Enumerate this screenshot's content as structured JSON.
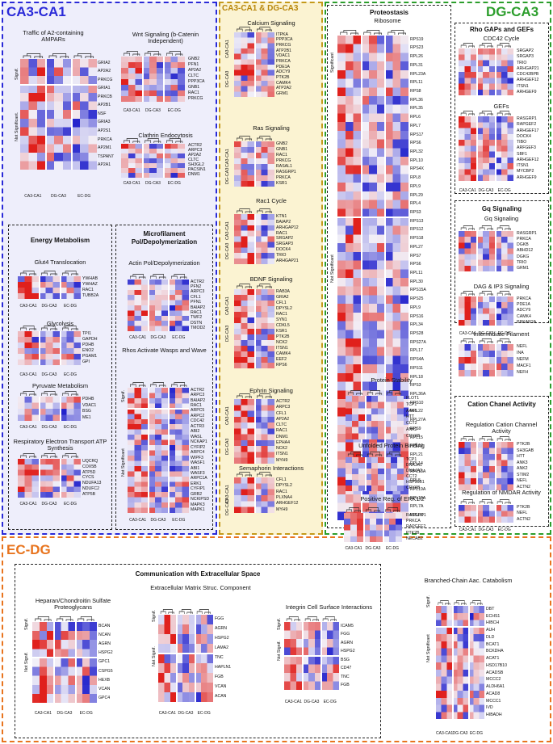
{
  "regions": {
    "ca3_ca1": "CA3-CA1",
    "ca3_ca1_dg_ca3": "CA3-CA1 & DG-CA3",
    "dg_ca3": "DG-CA3",
    "ec_dg": "EC-DG"
  },
  "colors": {
    "blue": "#2a2ad8",
    "yellow": "#b8860b",
    "green": "#2c9e2c",
    "orange": "#e8741e",
    "low": "#2222cc",
    "mid": "#f2f0f8",
    "high": "#e0201c"
  },
  "labels": {
    "signif": "Signif.",
    "not_signif": "Not Significant",
    "not_signif_dot": "Not Significant.",
    "not_signif_short": "Not Signif.",
    "significant": "Significant"
  },
  "boxes": {
    "energy": "Energy Metabolism",
    "microfilament": "Microfilament Pol/Depolymerization",
    "proteostasis": "Proteostasis",
    "rho": "Rho GAPs and GEFs",
    "gq": "Gq Signaling",
    "cation": "Cation Chanel Activity",
    "ecm": "Communication with Extracellular Space"
  },
  "modules": {
    "ampar": {
      "title": "Traffic of A2-containing AMPARs",
      "columns": [
        "CA3-CA1",
        "DG-CA3",
        "EC-DG"
      ],
      "genes_sig": [
        "GRIA2",
        "AP2A2",
        "PRKCG"
      ],
      "genes_ns": [
        "GRIA1",
        "PRKCB",
        "AP2B1",
        "NSF",
        "GRIA3",
        "AP2S1",
        "PRKCA",
        "AP2M1",
        "TSPAN7",
        "AP2A1"
      ]
    },
    "wnt": {
      "title": "Wnt Signaling (b-Catenin Independent)",
      "columns": [
        "CA3-CA1",
        "DG-CA3",
        "EC-DG"
      ],
      "genes": [
        "GNB2",
        "PFN1",
        "AP2A2",
        "CLTC",
        "PPP3CA",
        "GNB1",
        "RAC1",
        "PRKCG"
      ]
    },
    "clathrin": {
      "title": "Clathrin Endocytosis",
      "columns": [
        "CA3-CA1",
        "DG-CA3",
        "EC-DG"
      ],
      "genes": [
        "ACTR2",
        "ARPC3",
        "AP2A2",
        "CLTC",
        "SH3GL2",
        "PACSIN1",
        "DNM1"
      ]
    },
    "glut4": {
      "title": "Glut4 Translocation",
      "columns": [
        "CA3-CA1",
        "DG-CA3",
        "EC-DG"
      ],
      "genes": [
        "YWHAB",
        "YWHAZ",
        "RAC1",
        "TUBB2A"
      ]
    },
    "glycolysis": {
      "title": "Glycolysis",
      "columns": [
        "CA3-CA1",
        "DG-CA3",
        "EC-DG"
      ],
      "genes": [
        "TPI1",
        "GAPDH",
        "PDHB",
        "ENO2",
        "PGAM1",
        "GPI"
      ]
    },
    "pyruvate": {
      "title": "Pyruvate Metabolism",
      "columns": [
        "CA3-CA1",
        "DG-CA3",
        "EC-DG"
      ],
      "genes": [
        "PDHB",
        "VDAC1",
        "BSG",
        "ME1"
      ]
    },
    "resp": {
      "title": "Respiratory Electron Transport ATP Synthesis",
      "columns": [
        "CA3-CA1",
        "DG-CA3",
        "EC-DG"
      ],
      "genes": [
        "UQCRQ",
        "COX5B",
        "ATP5D",
        "CYCS",
        "NDUFA13",
        "NDUFC2",
        "ATP5B"
      ]
    },
    "actin": {
      "title": "Actin Pol/Depolymerization",
      "columns": [
        "CA3-CA1",
        "DG-CA3",
        "EC-DG"
      ],
      "genes": [
        "ACTR2",
        "PFN2",
        "ARPC3",
        "CFL1",
        "PFN1",
        "BAIAP2",
        "RAC1",
        "TWF2",
        "DSTN",
        "TMOD2"
      ]
    },
    "rhos": {
      "title": "Rhos Activate Wasps and Wave",
      "columns": [
        "CA3-CA1",
        "DG-CA3",
        "EC-DG"
      ],
      "genes_sig": [
        "ACTR2",
        "ARPC3",
        "BAIAP2",
        "RAC1"
      ],
      "genes_ns": [
        "ARPC5",
        "ARPC2",
        "CDC42",
        "ACTR3",
        "ABI2",
        "WASL",
        "NCKAP1",
        "CYFIP2",
        "ARPC4",
        "WIPF3",
        "WASF1",
        "ABI1",
        "WASF3",
        "ARPC1A",
        "ERK1",
        "CYFIP1",
        "GRB2",
        "NCKIPSD",
        "MAPK3",
        "MAPK1"
      ]
    },
    "calcium": {
      "title": "Calcium Signaling",
      "groups": [
        "CA3-CA1",
        "DG-CA3"
      ],
      "genes": [
        "ITPKA",
        "PPP3CA",
        "PRKCG",
        "ATP2B1",
        "VDAC1",
        "PRKCA",
        "PDE1A",
        "ADCY9",
        "PTK2B",
        "CAMK4",
        "ATP2A2",
        "GRM1"
      ]
    },
    "ras": {
      "title": "Ras Signaling",
      "groups": [
        "CA3-CA1",
        "DG-CA3"
      ],
      "genes": [
        "GNB2",
        "GNB1",
        "RAC1",
        "PRKCG",
        "RASAL1",
        "RASGRP1",
        "PRKCA",
        "KSR1"
      ]
    },
    "rac1": {
      "title": "Rac1 Cycle",
      "groups": [
        "CA3-CA1",
        "DG-CA3"
      ],
      "genes": [
        "KTN1",
        "BAIAP2",
        "ARHGAP12",
        "RAC1",
        "SRGAP2",
        "SRGAP3",
        "DOCK4",
        "TRIO",
        "ARHGAP21"
      ]
    },
    "bdnf": {
      "title": "BDNF Signaling",
      "groups": [
        "CA3-CA1",
        "DG-CA3"
      ],
      "genes": [
        "RAB3A",
        "GRIA2",
        "CFL1",
        "DPYSL2",
        "RAC1",
        "SYN1",
        "CDKL5",
        "KSR1",
        "PTK2B",
        "NCK2",
        "ITSN1",
        "CAMK4",
        "EEF2",
        "RPS6"
      ]
    },
    "ephrin": {
      "title": "Ephrin Signaling",
      "groups": [
        "CA3-CA1",
        "DG-CA3"
      ],
      "genes": [
        "ACTR2",
        "ARPC3",
        "CFL1",
        "AP2A2",
        "CLTC",
        "RAC1",
        "DNM1",
        "EPHA4",
        "NCK2",
        "ITSN1",
        "MYH9"
      ]
    },
    "semaphorin": {
      "title": "Semaphorin Interactions",
      "groups": [
        "CA3-CA1",
        "DG-CA3"
      ],
      "genes": [
        "CFL1",
        "DPYSL2",
        "RAC1",
        "PLXNA4",
        "ARHGEF12",
        "MYH9"
      ]
    },
    "ribosome": {
      "title": "Ribosome",
      "genes_sig": [
        "RPS19",
        "RPS23",
        "RPL26",
        "RPL31",
        "RPL23A",
        "RPL11",
        "RPS8",
        "RPL36",
        "RPL35",
        "RPL6",
        "RPL7",
        "RPS17",
        "RPS6",
        "RPL32",
        "RPL10",
        "RPS4X",
        "RPL8",
        "RPL9",
        "RPL29",
        "RPL4",
        "RPS3"
      ],
      "genes_ns": [
        "RPS13",
        "RPS12",
        "RPS18",
        "RPL27",
        "RPS7",
        "RPS6",
        "RPL11",
        "RPL30",
        "RPS15A",
        "RPS25",
        "RPL9",
        "RPS16",
        "RPL34",
        "RPS28",
        "RPS27A",
        "RPL17",
        "RPS4A",
        "RPS11",
        "RPL18",
        "RPS3",
        "RPL36A",
        "RPS10",
        "RPL22",
        "RPL27A",
        "RPS9",
        "RPL15",
        "RPL10",
        "RPL21",
        "RPL14",
        "RPL13A",
        "RPL5",
        "RPL19A",
        "RPL10A",
        "RPL7A",
        "RPLP0"
      ]
    },
    "stability": {
      "title": "Protein Stability",
      "genes": [
        "FLOT1",
        "TCP1",
        "AAK1",
        "HTT",
        "CCT2",
        "ANK2",
        "CRYAB"
      ]
    },
    "unfolded": {
      "title": "Unfolded Protein Binding",
      "genes": [
        "TCP1",
        "DNAJA1",
        "DNAJA2",
        "CCT2",
        "HSP90B1",
        "CRYAB"
      ]
    },
    "erk": {
      "title": "Positive Reg. of ERK1/2",
      "columns": [
        "CA3-CA1",
        "DG-CA3",
        "EC-DG"
      ],
      "genes": [
        "RASGRP1",
        "PRKCA",
        "RAPGEF2",
        "PTK2B",
        "NECAB2"
      ]
    },
    "cdc42": {
      "title": "CDC42 Cycle",
      "genes": [
        "SRGAP2",
        "SRGAP3",
        "TRIO",
        "ARHGAP21",
        "CDC42BPB",
        "ARHGEF12",
        "ITSN1",
        "ARHGEF9"
      ]
    },
    "gefs": {
      "title": "GEFs",
      "columns": [
        "CA3-CA1",
        "DG-CA3",
        "EC-DG"
      ],
      "genes": [
        "RASGRP1",
        "RAPGEF2",
        "ARHGEF17",
        "DOCK4",
        "TIBO",
        "ARFGEF3",
        "SBF1",
        "ARHGEF12",
        "ITSN1",
        "MYCBP2",
        "ARHGEF9"
      ]
    },
    "gqsig": {
      "title": "Gq Signaling",
      "genes": [
        "RASGRP1",
        "PRKCA",
        "DGKB",
        "ABHD12",
        "DGKG",
        "TRIO",
        "GRM1"
      ]
    },
    "dag": {
      "title": "DAG & IP3 Signaling",
      "columns": [
        "CA3-CA1",
        "DG-CA3",
        "EC-DG"
      ],
      "genes": [
        "PRKCA",
        "PDE1A",
        "ADCY9",
        "CAMK4",
        "PRKAR2A"
      ]
    },
    "intfil": {
      "title": "Intermidiate Filament",
      "genes": [
        "NEFL",
        "INA",
        "NEFM",
        "MACF1",
        "NEFH"
      ]
    },
    "regcat": {
      "title": "Regulation Cation Channel Activity",
      "genes": [
        "PTK2B",
        "SH3GAB",
        "HTT",
        "ANK3",
        "ANK2",
        "STIM2",
        "NEFL",
        "ACTN2"
      ]
    },
    "nmdar": {
      "title": "Regulation of NMDAR Activity",
      "columns": [
        "CA3-CA1",
        "DG-CA3",
        "EC-DG"
      ],
      "genes": [
        "PTK2B",
        "NEFL",
        "ACTN2"
      ]
    },
    "heparan": {
      "title": "Heparan/Chondroitin Sulfate Proteoglycans",
      "columns": [
        "CA3-CA1",
        "DG-CA3",
        "EC-DG"
      ],
      "genes_sig": [
        "BCAN",
        "NCAN",
        "AGRN",
        "HSPG2"
      ],
      "genes_ns": [
        "GPC1",
        "CSPG5",
        "HEXB",
        "VCAN",
        "GPC4"
      ]
    },
    "ecmstruct": {
      "title": "Extracellular Matrix Struc. Component",
      "columns": [
        "CA3-CA1",
        "DG-CA3",
        "EC-DG"
      ],
      "genes_sig": [
        "FGG",
        "AGRN",
        "HSPG2",
        "LAMA2"
      ],
      "genes_ns": [
        "TNC",
        "HAPLN1",
        "FGB",
        "VCAN",
        "ACAN"
      ]
    },
    "integrin": {
      "title": "Integrin Cell Surface Interactions",
      "columns": [
        "CA3-CA1",
        "DG-CA3",
        "EC-DG"
      ],
      "genes_sig": [
        "ICAM5",
        "FGG",
        "AGRN",
        "HSPG2"
      ],
      "genes_ns": [
        "BSG",
        "CD47",
        "TNC",
        "FGB"
      ]
    },
    "bcaa": {
      "title": "Branched-Chain Aac. Catabolism",
      "columns": [
        "CA3-CA1",
        "DG-CA3",
        "EC-DG"
      ],
      "genes_sig": [
        "DBT",
        "ECHS1",
        "HIBCH"
      ],
      "genes_ns": [
        "AUH",
        "DLD",
        "BCAT1",
        "BCKDHA",
        "ACAT1",
        "HSD17B10",
        "ACADSB",
        "MCCC2",
        "ALDH6A1",
        "ACAD8",
        "MCCC1",
        "IVD",
        "HIBADH"
      ]
    }
  }
}
